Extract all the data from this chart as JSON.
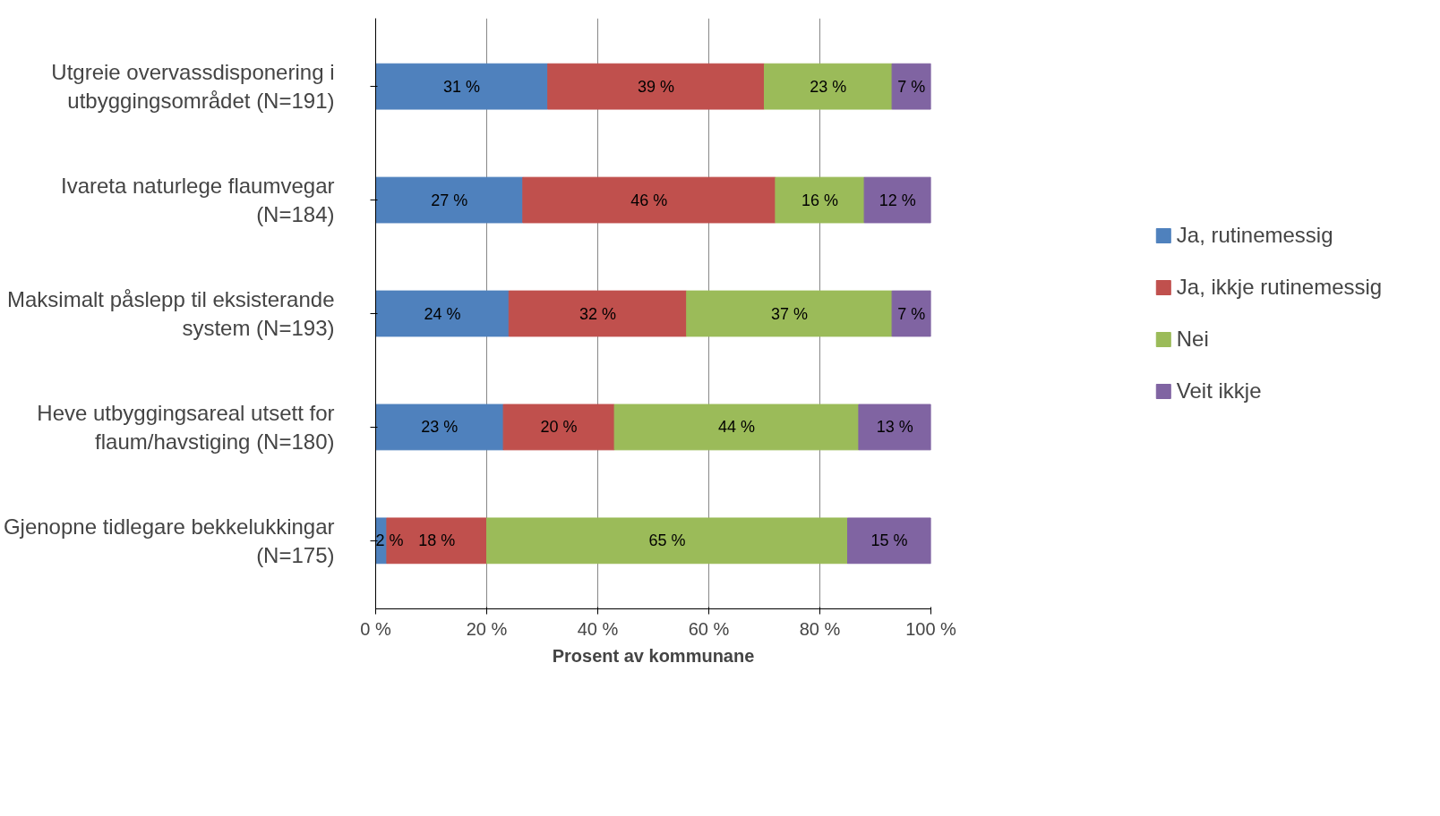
{
  "chart_data": {
    "type": "bar",
    "orientation": "horizontal",
    "stacked": true,
    "categories": [
      "Utgreie overvassdisponering i utbyggingsområdet (N=191)",
      "Ivareta naturlege flaumvegar (N=184)",
      "Maksimalt påslepp til eksisterande system (N=193)",
      "Heve utbyggingsareal utsett for flaum/havstiging (N=180)",
      "Gjenopne tidlegare bekkelukkingar (N=175)"
    ],
    "series": [
      {
        "name": "Ja, rutinemessig",
        "color": "#4f81bd",
        "values": [
          31,
          26.5,
          24,
          23,
          2
        ],
        "value_labels": [
          "31 %",
          "27 %",
          "24 %",
          "23 %",
          "2 %"
        ]
      },
      {
        "name": "Ja, ikkje rutinemessig",
        "color": "#c0504d",
        "values": [
          39,
          45.5,
          32,
          20,
          18
        ],
        "value_labels": [
          "39 %",
          "46 %",
          "32 %",
          "20 %",
          "18 %"
        ]
      },
      {
        "name": "Nei",
        "color": "#9bbb59",
        "values": [
          23,
          16,
          37,
          44,
          65
        ],
        "value_labels": [
          "23 %",
          "16 %",
          "37 %",
          "44 %",
          "65 %"
        ]
      },
      {
        "name": "Veit ikkje",
        "color": "#8064a2",
        "values": [
          7,
          12,
          7,
          13,
          15
        ],
        "value_labels": [
          "7 %",
          "12 %",
          "7 %",
          "13 %",
          "15 %"
        ]
      }
    ],
    "xlim": [
      0,
      100
    ],
    "xticks": [
      {
        "value": 0,
        "label": "0 %"
      },
      {
        "value": 20,
        "label": "20 %"
      },
      {
        "value": 40,
        "label": "40 %"
      },
      {
        "value": 60,
        "label": "60 %"
      },
      {
        "value": 80,
        "label": "80 %"
      },
      {
        "value": 100,
        "label": "100 %"
      }
    ],
    "xlabel": "Prosent av kommunane",
    "grid": "x",
    "legend": "right"
  }
}
